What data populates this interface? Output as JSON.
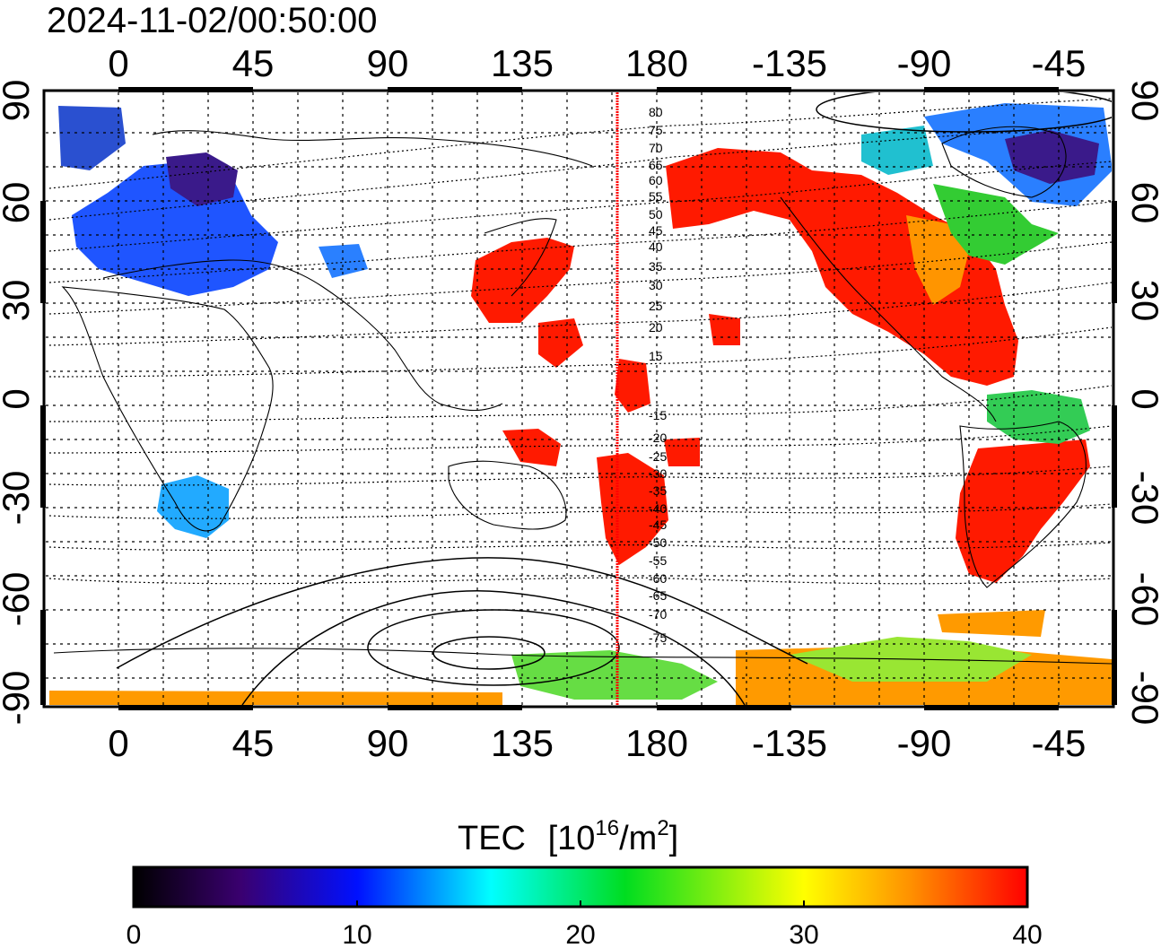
{
  "timestamp": "2024-11-02/00:50:00",
  "top_lon_labels": [
    "0",
    "45",
    "90",
    "135",
    "180",
    "-135",
    "-90",
    "-45"
  ],
  "bottom_lon_labels": [
    "0",
    "45",
    "90",
    "135",
    "180",
    "-135",
    "-90",
    "-45"
  ],
  "left_lat_labels": [
    "90",
    "60",
    "30",
    "0",
    "-30",
    "-60",
    "-90"
  ],
  "right_lat_labels": [
    "90",
    "60",
    "30",
    "0",
    "-30",
    "-60",
    "-90"
  ],
  "contour_labels": [
    "80",
    "75",
    "70",
    "65",
    "60",
    "55",
    "50",
    "45",
    "40",
    "35",
    "30",
    "25",
    "20",
    "15",
    "-15",
    "-20",
    "-25",
    "-30",
    "-35",
    "-40",
    "-45",
    "-50",
    "-55",
    "-60",
    "-65",
    "-70",
    "-75"
  ],
  "colorbar": {
    "title": "TEC",
    "unit_base": "[10",
    "unit_exp": "16",
    "unit_mid": "/m",
    "unit_exp2": "2",
    "unit_end": "]",
    "tick_labels": [
      "0",
      "10",
      "20",
      "30",
      "40"
    ],
    "min": 0,
    "max": 40
  },
  "colors": {
    "high_tec": "#ff1a00",
    "mid_tec": "#ff9900",
    "low_tec": "#2040ff",
    "marker_line": "#ff0000"
  }
}
